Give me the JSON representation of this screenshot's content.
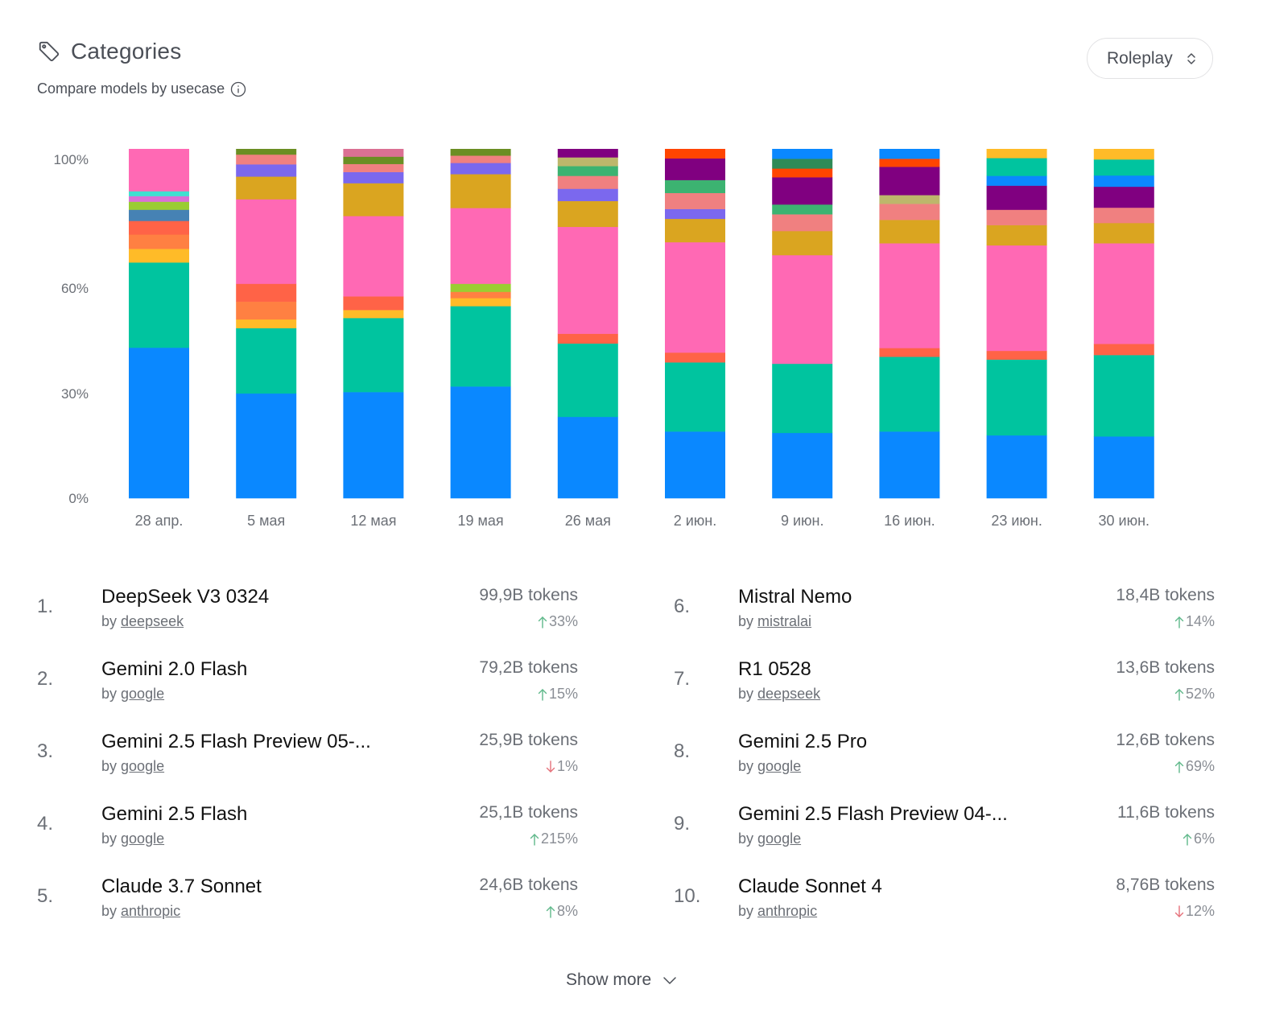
{
  "header": {
    "title": "Categories",
    "subtitle": "Compare models by usecase",
    "title_icon": "tag-icon",
    "info_icon": "info-icon"
  },
  "category_select": {
    "value": "Roleplay",
    "icon": "chevron-up-down-icon"
  },
  "colors": {
    "blue": "#0a88ff",
    "teal": "#00c49f",
    "yellow": "#ffbb28",
    "orange": "#ff8042",
    "tomato": "#ff6347",
    "steelblue": "#4682b4",
    "yellowgreen": "#9acd32",
    "orchid": "#da70d6",
    "turquoise": "#40e0d0",
    "pink": "#ff69b4",
    "goldenrod": "#daa520",
    "mediumslateblue": "#7b68ee",
    "lightcoral": "#f08080",
    "olivedrab": "#6b8e23",
    "palevioletred": "#db7093",
    "darkkhaki": "#bdb76b",
    "mediumseagreen": "#3cb371",
    "purple": "#800080",
    "orangered": "#ff4500",
    "seagreen": "#2e8b57"
  },
  "chart_data": {
    "type": "bar",
    "stacked": true,
    "normalized": true,
    "title": "",
    "xlabel": "",
    "ylabel": "",
    "ylim": [
      0,
      100
    ],
    "y_ticks": [
      "0%",
      "30%",
      "60%",
      "100%"
    ],
    "y_tick_values": [
      0,
      30,
      60,
      100
    ],
    "grid": false,
    "legend": "none",
    "categories": [
      "28 апр.",
      "5 мая",
      "12 мая",
      "19 мая",
      "26 мая",
      "2 июн.",
      "9 июн.",
      "16 июн.",
      "23 июн.",
      "30 июн."
    ],
    "stacks": [
      [
        [
          "blue",
          43.1
        ],
        [
          "teal",
          24.4
        ],
        [
          "yellow",
          3.9
        ],
        [
          "orange",
          4.1
        ],
        [
          "tomato",
          3.9
        ],
        [
          "steelblue",
          3.2
        ],
        [
          "yellowgreen",
          2.3
        ],
        [
          "orchid",
          1.6
        ],
        [
          "turquoise",
          1.4
        ],
        [
          "pink",
          12.1
        ]
      ],
      [
        [
          "blue",
          30.0
        ],
        [
          "teal",
          18.7
        ],
        [
          "yellow",
          2.5
        ],
        [
          "orange",
          5.1
        ],
        [
          "tomato",
          5.1
        ],
        [
          "pink",
          24.2
        ],
        [
          "goldenrod",
          6.5
        ],
        [
          "mediumslateblue",
          3.5
        ],
        [
          "lightcoral",
          2.8
        ],
        [
          "olivedrab",
          1.6
        ]
      ],
      [
        [
          "blue",
          30.4
        ],
        [
          "teal",
          21.2
        ],
        [
          "yellow",
          2.3
        ],
        [
          "tomato",
          3.9
        ],
        [
          "pink",
          23.0
        ],
        [
          "goldenrod",
          9.4
        ],
        [
          "mediumslateblue",
          3.2
        ],
        [
          "lightcoral",
          2.3
        ],
        [
          "olivedrab",
          2.1
        ],
        [
          "palevioletred",
          2.2
        ]
      ],
      [
        [
          "blue",
          32.0
        ],
        [
          "teal",
          23.0
        ],
        [
          "yellow",
          2.3
        ],
        [
          "orange",
          1.8
        ],
        [
          "yellowgreen",
          2.3
        ],
        [
          "pink",
          21.7
        ],
        [
          "goldenrod",
          9.7
        ],
        [
          "mediumslateblue",
          3.2
        ],
        [
          "lightcoral",
          2.1
        ],
        [
          "olivedrab",
          1.9
        ]
      ],
      [
        [
          "blue",
          23.3
        ],
        [
          "teal",
          21.0
        ],
        [
          "tomato",
          2.8
        ],
        [
          "pink",
          30.6
        ],
        [
          "goldenrod",
          7.4
        ],
        [
          "mediumslateblue",
          3.5
        ],
        [
          "lightcoral",
          3.7
        ],
        [
          "mediumseagreen",
          2.8
        ],
        [
          "darkkhaki",
          2.5
        ],
        [
          "purple",
          2.4
        ]
      ],
      [
        [
          "blue",
          19.1
        ],
        [
          "teal",
          19.8
        ],
        [
          "tomato",
          2.8
        ],
        [
          "pink",
          31.6
        ],
        [
          "goldenrod",
          6.7
        ],
        [
          "mediumslateblue",
          2.8
        ],
        [
          "lightcoral",
          4.6
        ],
        [
          "mediumseagreen",
          3.7
        ],
        [
          "purple",
          6.2
        ],
        [
          "orangered",
          2.7
        ]
      ],
      [
        [
          "blue",
          18.7
        ],
        [
          "teal",
          19.8
        ],
        [
          "pink",
          31.1
        ],
        [
          "goldenrod",
          6.9
        ],
        [
          "lightcoral",
          4.8
        ],
        [
          "mediumseagreen",
          2.8
        ],
        [
          "purple",
          7.8
        ],
        [
          "orangered",
          2.5
        ],
        [
          "seagreen",
          2.8
        ],
        [
          "blue",
          2.8
        ]
      ],
      [
        [
          "blue",
          19.1
        ],
        [
          "teal",
          21.4
        ],
        [
          "tomato",
          2.5
        ],
        [
          "pink",
          30.0
        ],
        [
          "goldenrod",
          6.7
        ],
        [
          "lightcoral",
          4.6
        ],
        [
          "darkkhaki",
          2.5
        ],
        [
          "purple",
          8.1
        ],
        [
          "orangered",
          2.3
        ],
        [
          "blue",
          2.8
        ]
      ],
      [
        [
          "blue",
          18.0
        ],
        [
          "teal",
          21.7
        ],
        [
          "tomato",
          2.5
        ],
        [
          "pink",
          30.2
        ],
        [
          "goldenrod",
          5.8
        ],
        [
          "lightcoral",
          4.4
        ],
        [
          "purple",
          6.9
        ],
        [
          "blue",
          2.8
        ],
        [
          "teal",
          5.1
        ],
        [
          "yellow",
          2.6
        ]
      ],
      [
        [
          "blue",
          17.7
        ],
        [
          "teal",
          23.3
        ],
        [
          "tomato",
          3.2
        ],
        [
          "pink",
          28.8
        ],
        [
          "goldenrod",
          5.8
        ],
        [
          "lightcoral",
          4.4
        ],
        [
          "purple",
          6.0
        ],
        [
          "blue",
          3.2
        ],
        [
          "teal",
          4.6
        ],
        [
          "yellow",
          3.0
        ]
      ]
    ]
  },
  "models": [
    {
      "rank": "1.",
      "name": "DeepSeek V3 0324",
      "by": "by",
      "author": "deepseek",
      "tokens": "99,9B tokens",
      "change": "33%",
      "direction": "up"
    },
    {
      "rank": "2.",
      "name": "Gemini 2.0 Flash",
      "by": "by",
      "author": "google",
      "tokens": "79,2B tokens",
      "change": "15%",
      "direction": "up"
    },
    {
      "rank": "3.",
      "name": "Gemini 2.5 Flash Preview 05-...",
      "by": "by",
      "author": "google",
      "tokens": "25,9B tokens",
      "change": "1%",
      "direction": "down"
    },
    {
      "rank": "4.",
      "name": "Gemini 2.5 Flash",
      "by": "by",
      "author": "google",
      "tokens": "25,1B tokens",
      "change": "215%",
      "direction": "up"
    },
    {
      "rank": "5.",
      "name": "Claude 3.7 Sonnet",
      "by": "by",
      "author": "anthropic",
      "tokens": "24,6B tokens",
      "change": "8%",
      "direction": "up"
    },
    {
      "rank": "6.",
      "name": "Mistral Nemo",
      "by": "by",
      "author": "mistralai",
      "tokens": "18,4B tokens",
      "change": "14%",
      "direction": "up"
    },
    {
      "rank": "7.",
      "name": "R1 0528",
      "by": "by",
      "author": "deepseek",
      "tokens": "13,6B tokens",
      "change": "52%",
      "direction": "up"
    },
    {
      "rank": "8.",
      "name": "Gemini 2.5 Pro",
      "by": "by",
      "author": "google",
      "tokens": "12,6B tokens",
      "change": "69%",
      "direction": "up"
    },
    {
      "rank": "9.",
      "name": "Gemini 2.5 Flash Preview 04-...",
      "by": "by",
      "author": "google",
      "tokens": "11,6B tokens",
      "change": "6%",
      "direction": "up"
    },
    {
      "rank": "10.",
      "name": "Claude Sonnet 4",
      "by": "by",
      "author": "anthropic",
      "tokens": "8,76B tokens",
      "change": "12%",
      "direction": "down"
    }
  ],
  "trend_colors": {
    "up": "#5fb88a",
    "down": "#e5707a"
  },
  "show_more": {
    "label": "Show more",
    "icon": "chevron-down-icon"
  }
}
